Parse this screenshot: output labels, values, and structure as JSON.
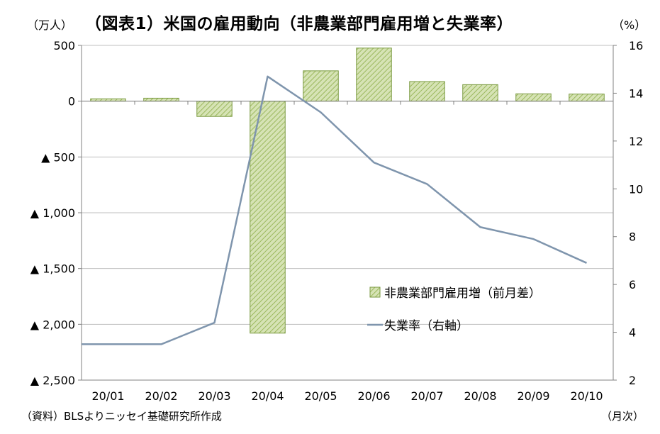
{
  "title": "（図表1）米国の雇用動向（非農業部門雇用増と失業率）",
  "unit_left": "（万人）",
  "unit_right": "（%）",
  "x_unit": "（月次）",
  "source": "（資料）BLSよりニッセイ基礎研究所作成",
  "colors": {
    "bar_fill": "#d6e3b5",
    "bar_hatch": "#9bb85d",
    "bar_stroke": "#7a9a40",
    "line": "#7f95ad",
    "grid": "#bfbfbf"
  },
  "chart_data": {
    "type": "bar",
    "categories": [
      "20/01",
      "20/02",
      "20/03",
      "20/04",
      "20/05",
      "20/06",
      "20/07",
      "20/08",
      "20/09",
      "20/10"
    ],
    "y_left": {
      "ylim": [
        -2500,
        500
      ],
      "ticks": [
        500,
        0,
        -500,
        -1000,
        -1500,
        -2000,
        -2500
      ],
      "tick_labels": [
        "500",
        "0",
        "▲ 500",
        "▲ 1,000",
        "▲ 1,500",
        "▲ 2,000",
        "▲ 2,500"
      ]
    },
    "y_right": {
      "ylim": [
        2,
        16
      ],
      "ticks": [
        16,
        14,
        12,
        10,
        8,
        6,
        4,
        2
      ],
      "tick_labels": [
        "16",
        "14",
        "12",
        "10",
        "8",
        "6",
        "4",
        "2"
      ]
    },
    "series": [
      {
        "name": "非農業部門雇用増（前月差）",
        "type": "bar",
        "axis": "left",
        "values": [
          21,
          27,
          -137,
          -2079,
          272,
          476,
          176,
          148,
          66,
          64
        ]
      },
      {
        "name": "失業率（右軸）",
        "type": "line",
        "axis": "right",
        "values": [
          3.5,
          3.5,
          4.4,
          14.7,
          13.2,
          11.1,
          10.2,
          8.4,
          7.9,
          6.9
        ]
      }
    ],
    "legend_position": "bottom-right",
    "grid": true
  }
}
